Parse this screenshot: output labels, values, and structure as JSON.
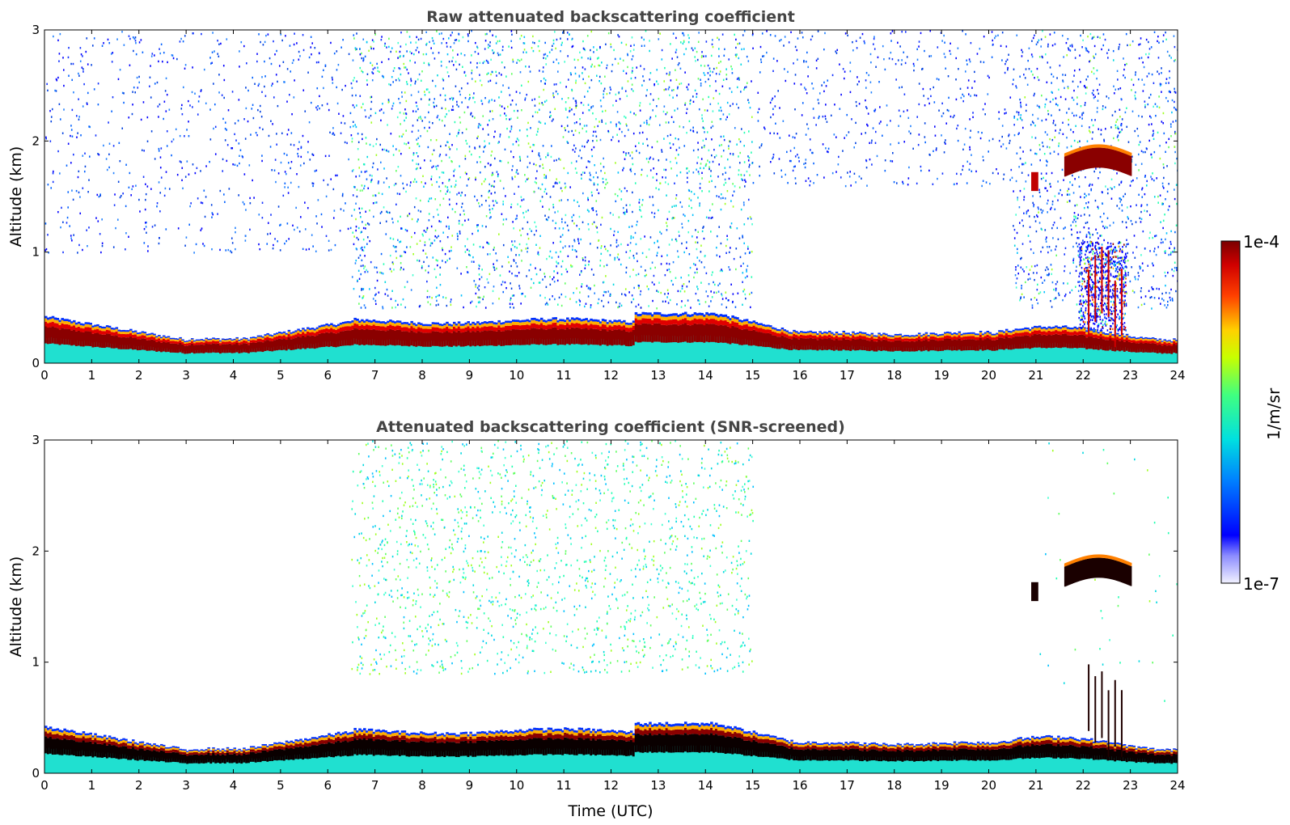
{
  "chart_data": [
    {
      "type": "heatmap",
      "title": "Raw attenuated backscattering coefficient",
      "xlabel": "",
      "ylabel": "Altitude (km)",
      "xlim": [
        0,
        24
      ],
      "ylim": [
        0,
        3
      ],
      "xticks": [
        "0",
        "1",
        "2",
        "3",
        "4",
        "5",
        "6",
        "7",
        "8",
        "9",
        "10",
        "11",
        "12",
        "13",
        "14",
        "15",
        "16",
        "17",
        "18",
        "19",
        "20",
        "21",
        "22",
        "23",
        "24"
      ],
      "yticks": [
        "0",
        "1",
        "2",
        "3"
      ],
      "features": [
        {
          "name": "boundary layer aerosol",
          "x_range": [
            0,
            24
          ],
          "altitude_km": [
            0.0,
            0.45
          ]
        },
        {
          "name": "elevated aerosol / noise",
          "x_range": [
            6.5,
            15
          ],
          "altitude_km": [
            0.5,
            3.0
          ]
        },
        {
          "name": "cloud layer",
          "x_range": [
            21.6,
            23.0
          ],
          "altitude_km": [
            1.65,
            1.9
          ]
        },
        {
          "name": "precipitation / virga",
          "x_range": [
            21.9,
            22.9
          ],
          "altitude_km": [
            0.25,
            1.1
          ]
        }
      ]
    },
    {
      "type": "heatmap",
      "title": "Attenuated backscattering coefficient (SNR-screened)",
      "xlabel": "Time (UTC)",
      "ylabel": "Altitude (km)",
      "xlim": [
        0,
        24
      ],
      "ylim": [
        0,
        3
      ],
      "xticks": [
        "0",
        "1",
        "2",
        "3",
        "4",
        "5",
        "6",
        "7",
        "8",
        "9",
        "10",
        "11",
        "12",
        "13",
        "14",
        "15",
        "16",
        "17",
        "18",
        "19",
        "20",
        "21",
        "22",
        "23",
        "24"
      ],
      "yticks": [
        "0",
        "1",
        "2",
        "3"
      ],
      "features": [
        {
          "name": "boundary layer aerosol",
          "x_range": [
            0,
            24
          ],
          "altitude_km": [
            0.0,
            0.45
          ]
        },
        {
          "name": "elevated aerosol",
          "x_range": [
            6.5,
            15
          ],
          "altitude_km": [
            0.9,
            3.0
          ]
        },
        {
          "name": "cloud layer",
          "x_range": [
            21.6,
            23.0
          ],
          "altitude_km": [
            1.65,
            1.9
          ]
        }
      ]
    }
  ],
  "colorbar": {
    "label": "1/m/sr",
    "max_label": "1e-4",
    "min_label": "1e-7",
    "scale": "log",
    "range": [
      1e-07,
      0.0001
    ]
  },
  "colors": {
    "title": "#444444",
    "background": "#ffffff"
  }
}
